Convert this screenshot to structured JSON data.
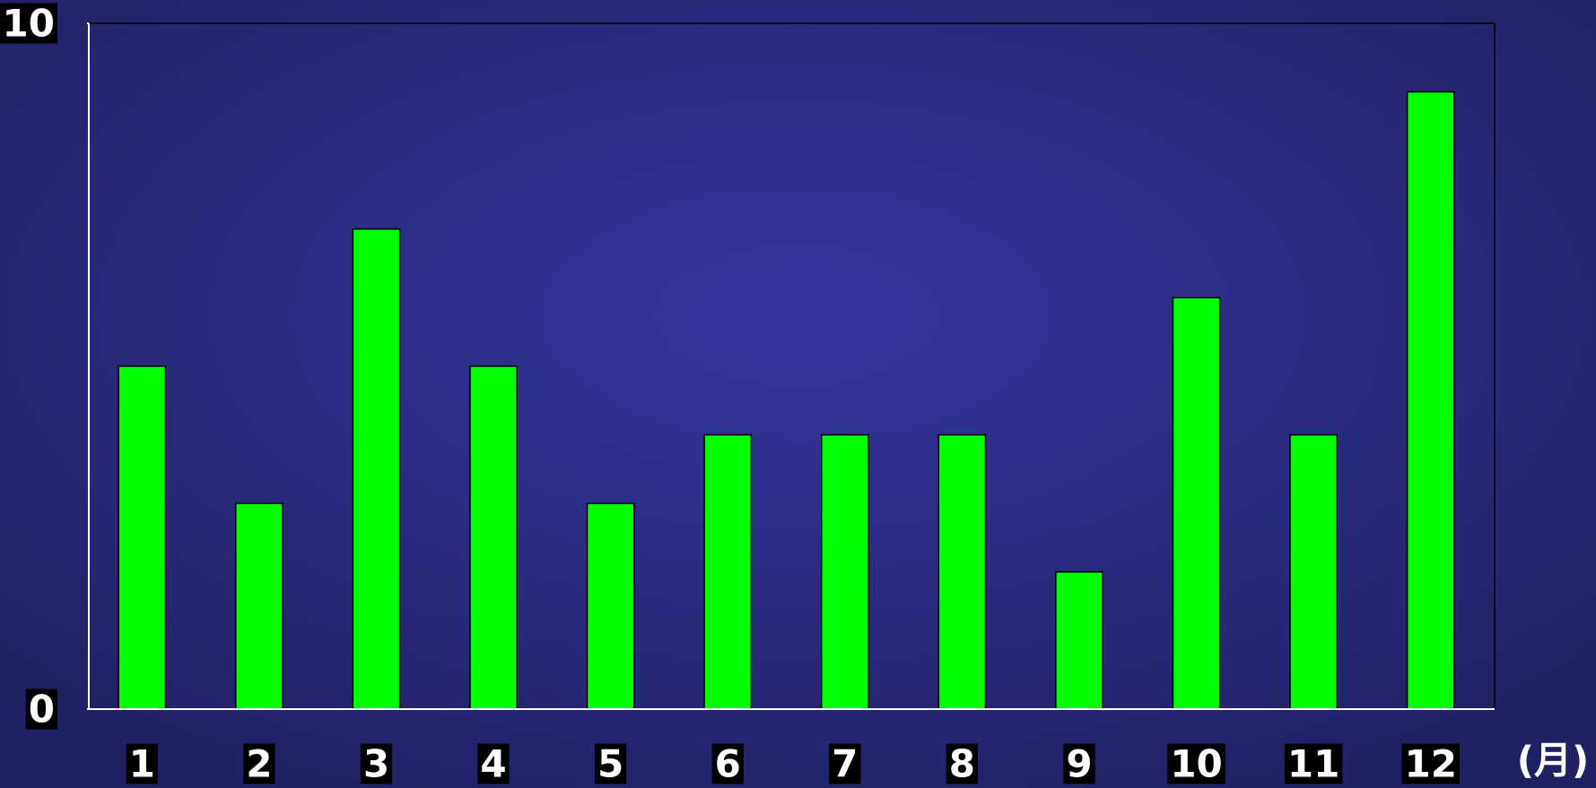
{
  "chart_data": {
    "type": "bar",
    "categories": [
      "1",
      "2",
      "3",
      "4",
      "5",
      "6",
      "7",
      "8",
      "9",
      "10",
      "11",
      "12"
    ],
    "values": [
      5,
      3,
      7,
      5,
      3,
      4,
      4,
      4,
      2,
      6,
      4,
      9
    ],
    "color": "#00ff00",
    "xlabel": "(月)",
    "ylim": [
      0,
      10
    ],
    "yticks": [
      0,
      10
    ],
    "grid": false
  }
}
